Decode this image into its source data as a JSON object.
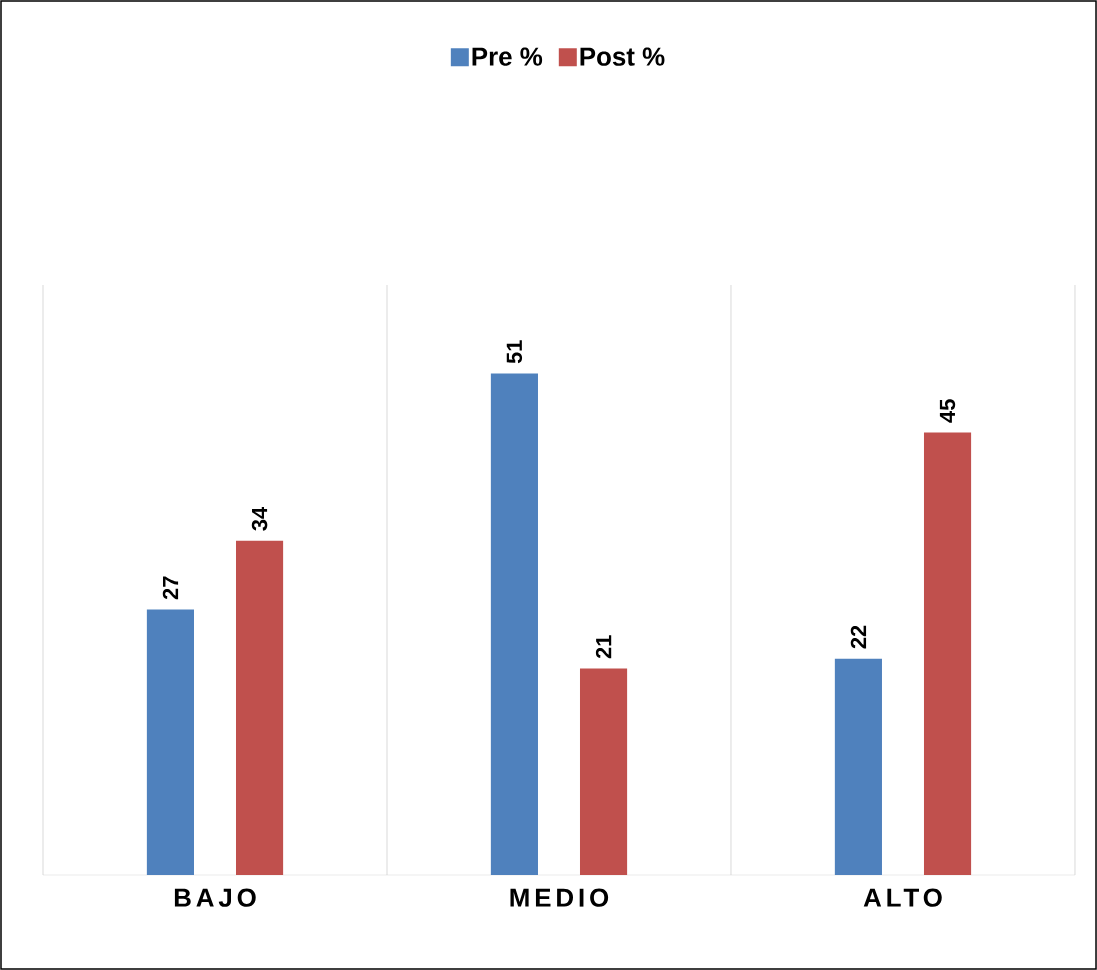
{
  "chart_data": {
    "type": "bar",
    "categories": [
      "BAJO",
      "MEDIO",
      "ALTO"
    ],
    "series": [
      {
        "name": "Pre %",
        "color": "#4f81bd",
        "values": [
          27,
          51,
          22
        ]
      },
      {
        "name": "Post %",
        "color": "#c0504d",
        "values": [
          34,
          21,
          45
        ]
      }
    ],
    "ylim": [
      0,
      60
    ],
    "data_labels": true,
    "legend": "top",
    "grid": "x",
    "tick_labels": "x"
  }
}
